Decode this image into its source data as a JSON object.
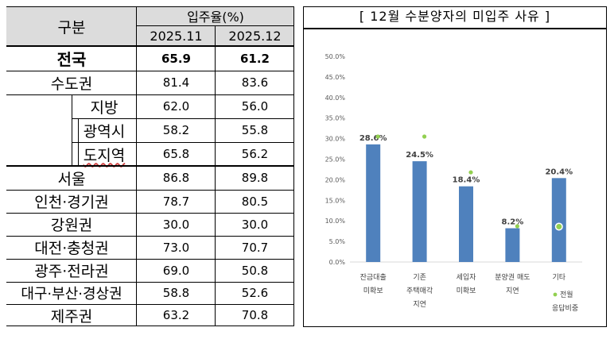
{
  "table": {
    "header": {
      "category": "구분",
      "rate_title": "입주율(%)",
      "col1": "2025.11",
      "col2": "2025.12"
    },
    "rows": [
      {
        "label": "전국",
        "v1": "65.9",
        "v2": "61.2"
      },
      {
        "label": "수도권",
        "v1": "81.4",
        "v2": "83.6"
      },
      {
        "label": "지방",
        "v1": "62.0",
        "v2": "56.0"
      },
      {
        "label": "광역시",
        "v1": "58.2",
        "v2": "55.8"
      },
      {
        "label": "도지역",
        "v1": "65.8",
        "v2": "56.2"
      },
      {
        "label": "서울",
        "v1": "86.8",
        "v2": "89.8"
      },
      {
        "label": "인천·경기권",
        "v1": "78.7",
        "v2": "80.5"
      },
      {
        "label": "강원권",
        "v1": "30.0",
        "v2": "30.0"
      },
      {
        "label": "대전·충청권",
        "v1": "73.0",
        "v2": "70.7"
      },
      {
        "label": "광주·전라권",
        "v1": "69.0",
        "v2": "50.8"
      },
      {
        "label": "대구·부산·경상권",
        "v1": "58.8",
        "v2": "52.6"
      },
      {
        "label": "제주권",
        "v1": "63.2",
        "v2": "70.8"
      }
    ]
  },
  "chart_title": "[ 12월  수분양자의  미입주  사유 ]",
  "chart_data": {
    "type": "bar",
    "title": "[ 12월  수분양자의  미입주  사유 ]",
    "categories": [
      [
        "잔금대출",
        "미확보"
      ],
      [
        "기존",
        "주택매각",
        "지연"
      ],
      [
        "세입자",
        "미확보"
      ],
      [
        "분양권 매도",
        "지연"
      ],
      [
        "기타"
      ]
    ],
    "values": [
      28.6,
      24.5,
      18.4,
      8.2,
      20.4
    ],
    "value_labels": [
      "28.6%",
      "24.5%",
      "18.4%",
      "8.2%",
      "20.4%"
    ],
    "prev_month": [
      30.5,
      30.5,
      21.8,
      8.7,
      8.6
    ],
    "ylim": [
      0,
      50
    ],
    "yticks": [
      "0.0%",
      "5.0%",
      "10.0%",
      "15.0%",
      "20.0%",
      "25.0%",
      "30.0%",
      "35.0%",
      "40.0%",
      "45.0%",
      "50.0%"
    ],
    "legend": {
      "label_line1": "전월",
      "label_line2": "응답비중",
      "position": "bottom-right"
    },
    "colors": {
      "bar": "#4f81bd",
      "dot": "#92d050"
    },
    "grid": false
  }
}
